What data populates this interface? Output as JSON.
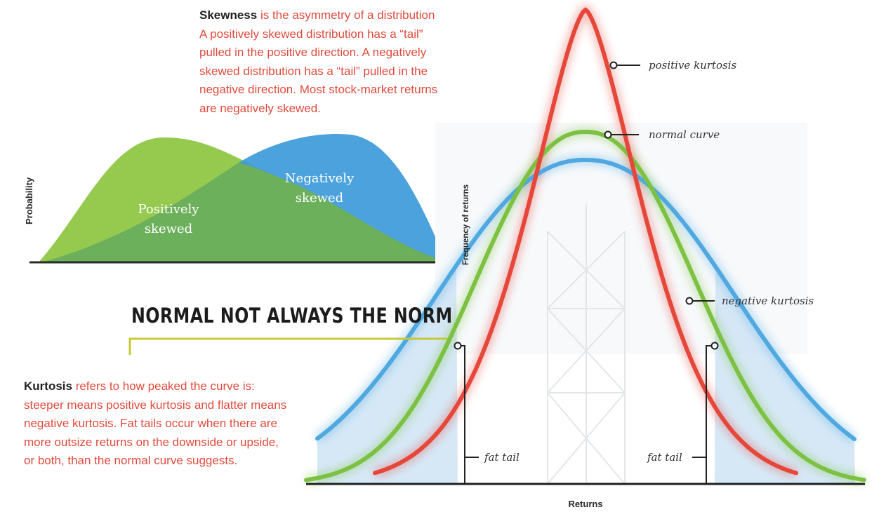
{
  "skewness": {
    "term": "Skewness",
    "lines": [
      " is the asymmetry of a distribution",
      "A positively skewed distribution has a “tail”",
      "pulled in the positive direction. A negatively",
      "skewed distribution has a “tail” pulled in the",
      "negative direction. Most stock-market returns",
      "are negatively skewed."
    ],
    "y_axis_label": "Probability",
    "positive_label": [
      "Positively",
      "skewed"
    ],
    "negative_label": [
      "Negatively",
      "skewed"
    ]
  },
  "headline": "NORMAL NOT ALWAYS THE NORM",
  "kurtosis": {
    "term": "Kurtosis",
    "lines": [
      " refers to how peaked the curve is:",
      "steeper means positive kurtosis and flatter means",
      "negative kurtosis. Fat tails occur when there are",
      "more outsize returns on the downside or upside,",
      "or both, than the normal curve suggests."
    ]
  },
  "chart": {
    "y_axis_label": "Frequency of returns",
    "x_axis_label": "Returns",
    "labels": {
      "positive_kurtosis": "positive kurtosis",
      "normal_curve": "normal curve",
      "negative_kurtosis": "negative kurtosis",
      "fat_tail_left": "fat tail",
      "fat_tail_right": "fat tail"
    },
    "colors": {
      "positive_kurtosis": "#e5473b",
      "normal_curve": "#7dc143",
      "negative_kurtosis": "#4fa8e0",
      "tail_fill": "#cfe4f5",
      "skew_positive": "#8cc63f",
      "skew_negative": "#3d9ad9",
      "headline_rule": "#c8c834"
    }
  }
}
